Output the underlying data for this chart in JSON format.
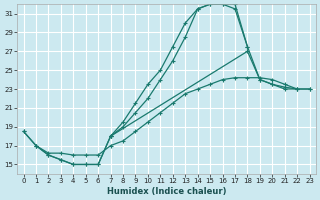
{
  "xlabel": "Humidex (Indice chaleur)",
  "xlim": [
    -0.5,
    23.5
  ],
  "ylim": [
    14,
    32
  ],
  "yticks": [
    15,
    17,
    19,
    21,
    23,
    25,
    27,
    29,
    31
  ],
  "xticks": [
    0,
    1,
    2,
    3,
    4,
    5,
    6,
    7,
    8,
    9,
    10,
    11,
    12,
    13,
    14,
    15,
    16,
    17,
    18,
    19,
    20,
    21,
    22,
    23
  ],
  "bg_color": "#cce9f0",
  "grid_color": "#ffffff",
  "line_color": "#1a7a6e",
  "series": [
    {
      "x": [
        7,
        8,
        9,
        10,
        11,
        12,
        13,
        14,
        15,
        16,
        17,
        18,
        19,
        20,
        21,
        22
      ],
      "y": [
        18.0,
        19.5,
        21.5,
        23.5,
        25.0,
        27.5,
        30.0,
        31.5,
        32.0,
        32.0,
        31.5,
        27.5,
        24.0,
        23.5,
        23.0,
        23.0
      ]
    },
    {
      "x": [
        7,
        8,
        9,
        10,
        11,
        12,
        13,
        14,
        15,
        16,
        17,
        18
      ],
      "y": [
        18.0,
        19.0,
        20.5,
        22.0,
        24.0,
        26.0,
        28.5,
        31.5,
        32.0,
        32.0,
        32.0,
        27.5
      ]
    },
    {
      "x": [
        0,
        1,
        2,
        3,
        4,
        5,
        6,
        7,
        8,
        9,
        10,
        11,
        12,
        13,
        14,
        15,
        16,
        17,
        18,
        19,
        20,
        21,
        22,
        23
      ],
      "y": [
        18.5,
        17.0,
        16.2,
        16.2,
        16.0,
        16.0,
        16.0,
        17.0,
        17.5,
        18.5,
        19.5,
        20.5,
        21.5,
        22.5,
        23.0,
        23.5,
        24.0,
        24.2,
        24.2,
        24.2,
        24.0,
        23.5,
        23.0,
        23.0
      ]
    },
    {
      "x": [
        0,
        1,
        2,
        3,
        4,
        5,
        6,
        7
      ],
      "y": [
        18.5,
        17.0,
        16.0,
        15.5,
        15.0,
        15.0,
        15.0,
        18.0
      ]
    },
    {
      "x": [
        1,
        2,
        3,
        4,
        5,
        6,
        7,
        18,
        19,
        20,
        21,
        22,
        23
      ],
      "y": [
        17.0,
        16.0,
        15.5,
        15.0,
        15.0,
        15.0,
        18.0,
        27.0,
        24.0,
        23.5,
        23.2,
        23.0,
        23.0
      ]
    }
  ]
}
